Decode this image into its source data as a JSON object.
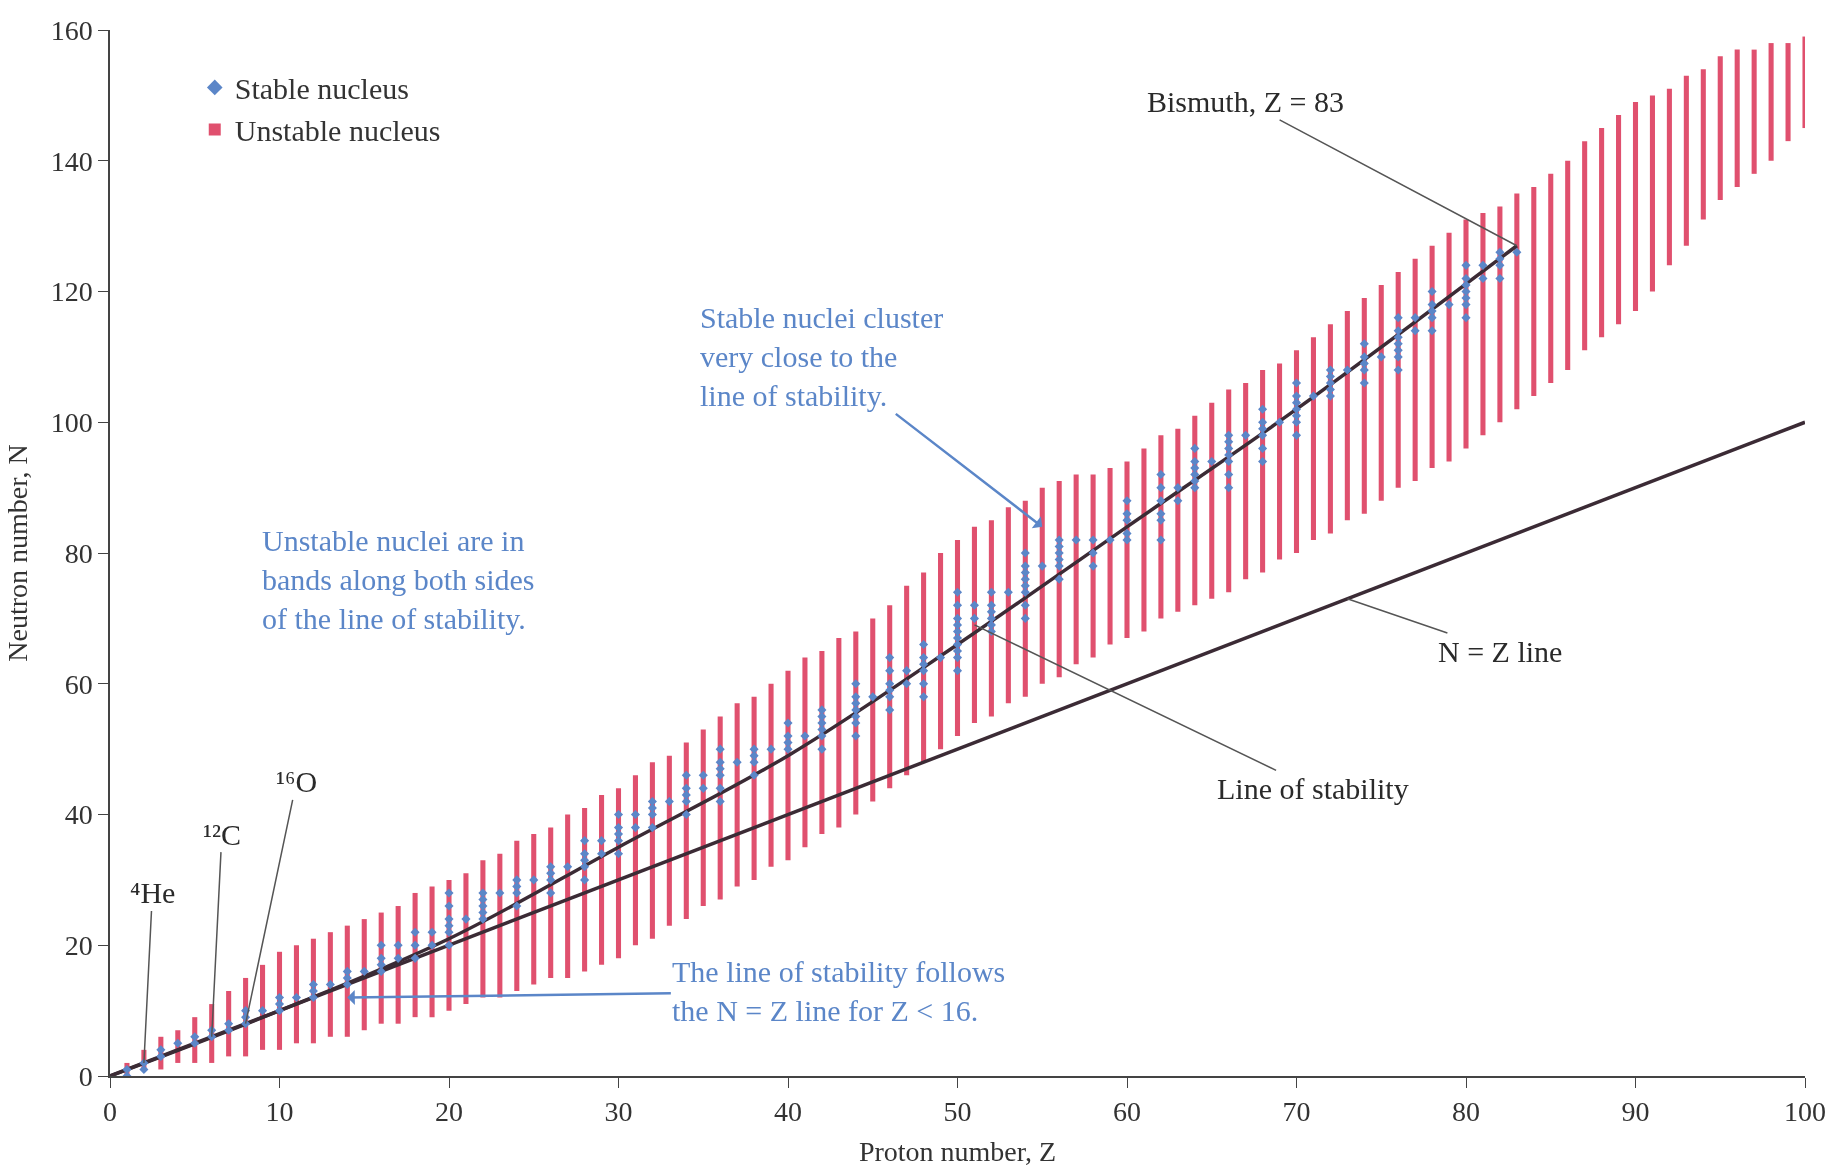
{
  "chart_data": {
    "type": "scatter",
    "xlabel": "Proton number, Z",
    "ylabel": "Neutron number, N",
    "xlim": [
      0,
      100
    ],
    "xticks": [
      0,
      10,
      20,
      30,
      40,
      50,
      60,
      70,
      80,
      90,
      100
    ],
    "ylim": [
      0,
      160
    ],
    "yticks": [
      0,
      20,
      40,
      60,
      80,
      100,
      120,
      140,
      160
    ],
    "legend": "top left",
    "series": [
      {
        "name": "Stable nucleus",
        "marker": "diamond",
        "color": "#5b86c8",
        "x": [
          1,
          1,
          2,
          2,
          3,
          3,
          4,
          5,
          5,
          6,
          6,
          7,
          7,
          8,
          8,
          8,
          9,
          10,
          10,
          10,
          11,
          12,
          12,
          12,
          13,
          14,
          14,
          14,
          15,
          16,
          16,
          16,
          16,
          17,
          17,
          18,
          18,
          18,
          19,
          19,
          20,
          20,
          20,
          20,
          20,
          20,
          21,
          22,
          22,
          22,
          22,
          22,
          23,
          24,
          24,
          24,
          24,
          25,
          26,
          26,
          26,
          26,
          27,
          28,
          28,
          28,
          28,
          28,
          29,
          29,
          30,
          30,
          30,
          30,
          30,
          31,
          31,
          32,
          32,
          32,
          32,
          33,
          34,
          34,
          34,
          34,
          34,
          35,
          35,
          36,
          36,
          36,
          36,
          36,
          36,
          37,
          38,
          38,
          38,
          38,
          39,
          40,
          40,
          40,
          40,
          41,
          42,
          42,
          42,
          42,
          42,
          42,
          44,
          44,
          44,
          44,
          44,
          44,
          44,
          45,
          46,
          46,
          46,
          46,
          46,
          46,
          47,
          47,
          48,
          48,
          48,
          48,
          48,
          48,
          49,
          50,
          50,
          50,
          50,
          50,
          50,
          50,
          50,
          50,
          50,
          51,
          51,
          52,
          52,
          52,
          52,
          52,
          52,
          53,
          54,
          54,
          54,
          54,
          54,
          54,
          54,
          54,
          55,
          56,
          56,
          56,
          56,
          56,
          56,
          57,
          58,
          58,
          58,
          59,
          60,
          60,
          60,
          60,
          60,
          62,
          62,
          62,
          62,
          62,
          62,
          63,
          63,
          64,
          64,
          64,
          64,
          64,
          64,
          65,
          66,
          66,
          66,
          66,
          66,
          66,
          66,
          67,
          68,
          68,
          68,
          68,
          68,
          68,
          69,
          70,
          70,
          70,
          70,
          70,
          70,
          70,
          71,
          72,
          72,
          72,
          72,
          72,
          73,
          74,
          74,
          74,
          74,
          74,
          75,
          76,
          76,
          76,
          76,
          76,
          76,
          76,
          77,
          77,
          78,
          78,
          78,
          78,
          78,
          79,
          80,
          80,
          80,
          80,
          80,
          80,
          80,
          81,
          81,
          82,
          82,
          82,
          82,
          83
        ],
        "values": [
          0,
          1,
          1,
          2,
          3,
          4,
          5,
          5,
          6,
          6,
          7,
          7,
          8,
          8,
          9,
          10,
          10,
          10,
          11,
          12,
          12,
          12,
          13,
          14,
          14,
          14,
          15,
          16,
          16,
          16,
          17,
          18,
          20,
          18,
          20,
          18,
          20,
          22,
          20,
          22,
          20,
          22,
          23,
          24,
          26,
          28,
          24,
          24,
          25,
          26,
          27,
          28,
          28,
          26,
          28,
          29,
          30,
          30,
          28,
          30,
          31,
          32,
          32,
          30,
          32,
          33,
          34,
          36,
          34,
          36,
          34,
          36,
          37,
          38,
          40,
          38,
          40,
          38,
          40,
          41,
          42,
          42,
          40,
          42,
          43,
          44,
          46,
          44,
          46,
          42,
          44,
          46,
          47,
          48,
          50,
          48,
          46,
          48,
          49,
          50,
          50,
          50,
          51,
          52,
          54,
          52,
          50,
          52,
          53,
          54,
          55,
          56,
          52,
          54,
          55,
          56,
          57,
          58,
          60,
          58,
          56,
          58,
          59,
          60,
          62,
          64,
          60,
          62,
          58,
          60,
          62,
          63,
          64,
          66,
          64,
          62,
          64,
          65,
          66,
          67,
          68,
          69,
          70,
          72,
          74,
          70,
          72,
          68,
          69,
          70,
          71,
          72,
          74,
          74,
          70,
          72,
          74,
          75,
          76,
          77,
          78,
          80,
          78,
          76,
          78,
          79,
          80,
          81,
          82,
          82,
          78,
          80,
          82,
          82,
          82,
          83,
          85,
          86,
          88,
          82,
          85,
          86,
          88,
          90,
          92,
          88,
          90,
          90,
          91,
          92,
          93,
          94,
          96,
          94,
          90,
          92,
          94,
          95,
          96,
          97,
          98,
          98,
          94,
          96,
          98,
          99,
          100,
          102,
          100,
          98,
          100,
          101,
          102,
          103,
          104,
          106,
          104,
          104,
          105,
          106,
          107,
          108,
          108,
          106,
          108,
          109,
          110,
          112,
          110,
          108,
          110,
          111,
          112,
          113,
          114,
          116,
          114,
          116,
          114,
          116,
          117,
          118,
          120,
          118,
          116,
          118,
          119,
          120,
          121,
          122,
          124,
          122,
          124,
          122,
          124,
          125,
          126,
          126
        ]
      },
      {
        "name": "Unstable nucleus",
        "type": "bar",
        "color": "#e0506e",
        "x": [
          1,
          2,
          3,
          4,
          5,
          6,
          7,
          8,
          9,
          10,
          11,
          12,
          13,
          14,
          15,
          16,
          17,
          18,
          19,
          20,
          21,
          22,
          23,
          24,
          25,
          26,
          27,
          28,
          29,
          30,
          31,
          32,
          33,
          34,
          35,
          36,
          37,
          38,
          39,
          40,
          41,
          42,
          43,
          44,
          45,
          46,
          47,
          48,
          49,
          50,
          51,
          52,
          53,
          54,
          55,
          56,
          57,
          58,
          59,
          60,
          61,
          62,
          63,
          64,
          65,
          66,
          67,
          68,
          69,
          70,
          71,
          72,
          73,
          74,
          75,
          76,
          77,
          78,
          79,
          80,
          81,
          82,
          83,
          84,
          85,
          86,
          87,
          88,
          89,
          90,
          91,
          92,
          93,
          94,
          95,
          96,
          97,
          98,
          99,
          100
        ],
        "base": [
          0,
          1,
          1,
          2,
          2,
          2,
          3,
          3,
          4,
          4,
          5,
          5,
          6,
          6,
          7,
          8,
          8,
          9,
          9,
          10,
          11,
          12,
          12,
          13,
          14,
          15,
          15,
          16,
          17,
          18,
          20,
          21,
          23,
          24,
          26,
          27,
          29,
          30,
          32,
          33,
          35,
          37,
          38,
          40,
          42,
          44,
          46,
          48,
          50,
          52,
          54,
          55,
          57,
          58,
          60,
          61,
          63,
          64,
          66,
          67,
          68,
          70,
          71,
          72,
          73,
          74,
          76,
          77,
          79,
          80,
          82,
          83,
          85,
          86,
          88,
          90,
          91,
          93,
          94,
          96,
          98,
          100,
          102,
          104,
          106,
          108,
          111,
          113,
          115,
          117,
          120,
          124,
          127,
          131,
          134,
          136,
          138,
          140,
          143,
          145
        ],
        "values": [
          2,
          3,
          5,
          5,
          7,
          9,
          10,
          12,
          13,
          15,
          15,
          16,
          16,
          17,
          17,
          17,
          18,
          19,
          20,
          20,
          20,
          21,
          22,
          23,
          23,
          23,
          25,
          25,
          26,
          26,
          26,
          27,
          26,
          27,
          27,
          28,
          28,
          28,
          28,
          29,
          29,
          28,
          29,
          28,
          28,
          28,
          29,
          29,
          30,
          30,
          30,
          30,
          30,
          30,
          30,
          30,
          29,
          28,
          27,
          27,
          28,
          28,
          28,
          29,
          30,
          31,
          30,
          31,
          30,
          31,
          31,
          32,
          32,
          33,
          33,
          33,
          34,
          34,
          35,
          35,
          34,
          33,
          33,
          32,
          32,
          32,
          32,
          32,
          32,
          32,
          30,
          27,
          26,
          23,
          22,
          21,
          19,
          18,
          15,
          14
        ]
      },
      {
        "type": "line",
        "color": "#3b2b35",
        "x": [
          0,
          10,
          20,
          30,
          40,
          50,
          60,
          70,
          83
        ],
        "values": [
          0,
          10,
          21,
          35,
          49,
          66,
          84,
          102,
          127
        ]
      },
      {
        "type": "line",
        "color": "#3b2b35",
        "x": [
          0,
          100
        ],
        "values": [
          0,
          100
        ]
      }
    ],
    "annotations": [
      {
        "text": "Bismuth, Z = 83",
        "x": 83,
        "y": 127
      },
      {
        "text": "Stable nuclei cluster\nvery close to the\nline of stability.",
        "x": 55,
        "y": 84
      },
      "Unstable nuclei are in\nbands along both sides\nof the line of stability.",
      {
        "text": "The line of stability follows\nthe N = Z line for Z < 16.",
        "x": 14,
        "y": 12
      },
      {
        "text": "N = Z line",
        "x": 73,
        "y": 73
      },
      {
        "text": "Line of stability",
        "x": 51,
        "y": 69
      },
      {
        "text": "⁴He",
        "x": 2,
        "y": 2
      },
      {
        "text": "¹²C",
        "x": 6,
        "y": 6
      },
      {
        "text": "¹⁶O",
        "x": 8,
        "y": 8
      }
    ]
  }
}
